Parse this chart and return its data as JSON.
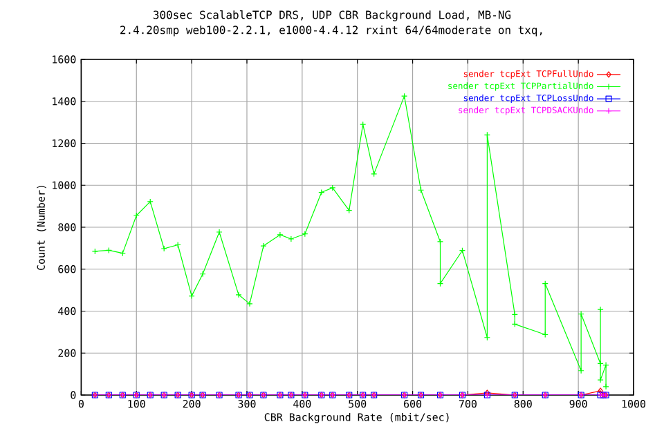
{
  "chart_data": {
    "type": "line",
    "title": "300sec ScalableTCP DRS, UDP CBR Background Load, MB-NG",
    "subtitle": "2.4.20smp web100-2.2.1, e1000-4.4.12 rxint 64/64moderate on txq,",
    "xlabel": "CBR Background Rate (mbit/sec)",
    "ylabel": "Count (Number)",
    "xlim": [
      0,
      1000
    ],
    "xticks": [
      0,
      100,
      200,
      300,
      400,
      500,
      600,
      700,
      800,
      900,
      1000
    ],
    "ylim": [
      0,
      1600
    ],
    "yticks": [
      0,
      200,
      400,
      600,
      800,
      1000,
      1200,
      1400,
      1600
    ],
    "grid": true,
    "legend": "top right",
    "series": [
      {
        "name": "sender tcpExt TCPFullUndo",
        "color": "#ff0000",
        "marker": "diamond",
        "x": [
          25,
          50,
          75,
          100,
          125,
          150,
          175,
          200,
          220,
          250,
          285,
          305,
          330,
          360,
          380,
          405,
          435,
          455,
          485,
          510,
          530,
          585,
          615,
          650,
          690,
          735,
          785,
          840,
          905,
          940,
          945,
          950
        ],
        "values": [
          0,
          0,
          0,
          0,
          0,
          0,
          0,
          0,
          0,
          0,
          0,
          0,
          0,
          0,
          0,
          0,
          0,
          0,
          0,
          0,
          0,
          0,
          0,
          0,
          0,
          10,
          0,
          0,
          0,
          20,
          0,
          0
        ]
      },
      {
        "name": "sender tcpExt TCPPartialUndo",
        "color": "#00ff00",
        "marker": "cross",
        "x": [
          25,
          50,
          75,
          100,
          125,
          150,
          175,
          200,
          220,
          250,
          285,
          305,
          330,
          360,
          380,
          405,
          435,
          455,
          485,
          510,
          530,
          585,
          615,
          650,
          650,
          690,
          735,
          735,
          785,
          785,
          840,
          840,
          905,
          905,
          940,
          940,
          940,
          950,
          950
        ],
        "values": [
          685,
          690,
          676,
          856,
          922,
          698,
          716,
          472,
          577,
          777,
          478,
          435,
          711,
          764,
          744,
          768,
          966,
          988,
          880,
          1290,
          1054,
          1425,
          977,
          731,
          531,
          689,
          274,
          1240,
          384,
          338,
          288,
          531,
          116,
          386,
          150,
          408,
          72,
          143,
          40
        ]
      },
      {
        "name": "sender tcpExt TCPLossUndo",
        "color": "#0000ff",
        "marker": "square",
        "x": [
          25,
          50,
          75,
          100,
          125,
          150,
          175,
          200,
          220,
          250,
          285,
          305,
          330,
          360,
          380,
          405,
          435,
          455,
          485,
          510,
          530,
          585,
          615,
          650,
          690,
          735,
          785,
          840,
          905,
          940,
          945,
          950
        ],
        "values": [
          0,
          0,
          0,
          0,
          0,
          0,
          0,
          0,
          0,
          0,
          0,
          0,
          0,
          0,
          0,
          0,
          0,
          0,
          0,
          0,
          0,
          0,
          0,
          0,
          0,
          0,
          0,
          0,
          0,
          0,
          0,
          0
        ]
      },
      {
        "name": "sender tcpExt TCPDSACKUndo",
        "color": "#ff00ff",
        "marker": "cross",
        "x": [
          25,
          50,
          75,
          100,
          125,
          150,
          175,
          200,
          220,
          250,
          285,
          305,
          330,
          360,
          380,
          405,
          435,
          455,
          485,
          510,
          530,
          585,
          615,
          650,
          690,
          735,
          785,
          840,
          905,
          940,
          945,
          950
        ],
        "values": [
          0,
          0,
          0,
          0,
          0,
          0,
          0,
          0,
          0,
          0,
          0,
          0,
          0,
          0,
          0,
          0,
          0,
          0,
          0,
          0,
          0,
          0,
          0,
          0,
          0,
          0,
          0,
          0,
          0,
          0,
          0,
          0
        ]
      }
    ]
  }
}
